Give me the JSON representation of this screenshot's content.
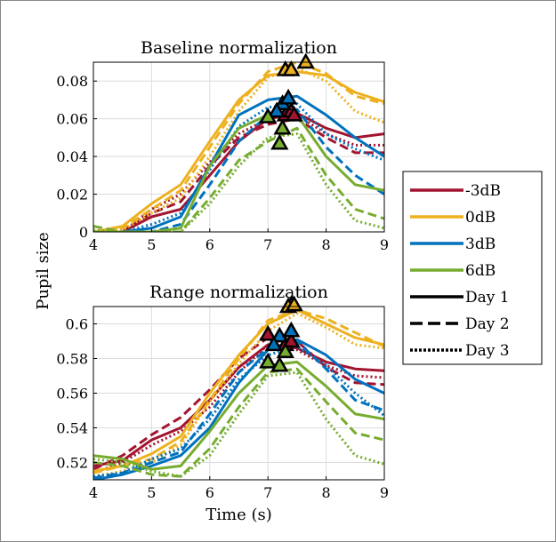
{
  "colors": {
    "-3dB": "#a2142f",
    "0dB": "#edb120",
    "3dB": "#0072bd",
    "6dB": "#77ac30",
    "black": "#000000"
  },
  "legend": {
    "position": "right",
    "entries": [
      {
        "label": "-3dB",
        "color": "#a2142f",
        "style": "solid"
      },
      {
        "label": "0dB",
        "color": "#edb120",
        "style": "solid"
      },
      {
        "label": "3dB",
        "color": "#0072bd",
        "style": "solid"
      },
      {
        "label": "6dB",
        "color": "#77ac30",
        "style": "solid"
      },
      {
        "label": "Day 1",
        "color": "#000000",
        "style": "solid"
      },
      {
        "label": "Day 2",
        "color": "#000000",
        "style": "dashed"
      },
      {
        "label": "Day 3",
        "color": "#000000",
        "style": "dotted"
      }
    ]
  },
  "shared_ylabel": "Pupil size",
  "chart_data": [
    {
      "type": "line",
      "title": "Baseline normalization",
      "xlabel": "",
      "ylabel": "Pupil size",
      "xlim": [
        4,
        9
      ],
      "ylim": [
        0,
        0.09
      ],
      "xticks": [
        4,
        5,
        6,
        7,
        8,
        9
      ],
      "yticks": [
        0,
        0.02,
        0.04,
        0.06,
        0.08
      ],
      "ytick_labels": [
        "0",
        "0.02",
        "0.04",
        "0.06",
        "0.08"
      ],
      "grid": true,
      "x": [
        4.0,
        4.5,
        5.0,
        5.5,
        6.0,
        6.5,
        7.0,
        7.5,
        8.0,
        8.5,
        9.0
      ],
      "series": [
        {
          "group": "-3dB",
          "day": "Day 1",
          "values": [
            0,
            0,
            0.008,
            0.012,
            0.03,
            0.048,
            0.06,
            0.063,
            0.055,
            0.05,
            0.052
          ]
        },
        {
          "group": "-3dB",
          "day": "Day 2",
          "values": [
            0,
            0,
            0.01,
            0.016,
            0.035,
            0.05,
            0.057,
            0.06,
            0.05,
            0.042,
            0.042
          ]
        },
        {
          "group": "-3dB",
          "day": "Day 3",
          "values": [
            0,
            0,
            0.012,
            0.02,
            0.037,
            0.052,
            0.06,
            0.062,
            0.052,
            0.046,
            0.046
          ]
        },
        {
          "group": "0dB",
          "day": "Day 1",
          "values": [
            0,
            0.003,
            0.015,
            0.025,
            0.048,
            0.07,
            0.083,
            0.085,
            0.083,
            0.074,
            0.069
          ]
        },
        {
          "group": "0dB",
          "day": "Day 2",
          "values": [
            0,
            0.002,
            0.012,
            0.022,
            0.045,
            0.068,
            0.085,
            0.09,
            0.084,
            0.072,
            0.068
          ]
        },
        {
          "group": "0dB",
          "day": "Day 3",
          "values": [
            0,
            0.001,
            0.01,
            0.018,
            0.04,
            0.064,
            0.082,
            0.087,
            0.08,
            0.064,
            0.058
          ]
        },
        {
          "group": "3dB",
          "day": "Day 1",
          "values": [
            0,
            0,
            0.002,
            0.008,
            0.035,
            0.062,
            0.07,
            0.072,
            0.062,
            0.05,
            0.04
          ]
        },
        {
          "group": "3dB",
          "day": "Day 2",
          "values": [
            0,
            0,
            0,
            0.004,
            0.025,
            0.048,
            0.062,
            0.065,
            0.045,
            0.03,
            0.02
          ]
        },
        {
          "group": "3dB",
          "day": "Day 3",
          "values": [
            0,
            0,
            0.004,
            0.01,
            0.033,
            0.056,
            0.066,
            0.068,
            0.052,
            0.044,
            0.038
          ]
        },
        {
          "group": "6dB",
          "day": "Day 1",
          "values": [
            0,
            0,
            0,
            0.002,
            0.035,
            0.055,
            0.062,
            0.062,
            0.04,
            0.025,
            0.022
          ]
        },
        {
          "group": "6dB",
          "day": "Day 2",
          "values": [
            0.003,
            0,
            0,
            0,
            0.018,
            0.038,
            0.048,
            0.055,
            0.03,
            0.012,
            0.007
          ]
        },
        {
          "group": "6dB",
          "day": "Day 3",
          "values": [
            0.001,
            0,
            0,
            0,
            0.015,
            0.035,
            0.05,
            0.052,
            0.025,
            0.006,
            0.002
          ]
        }
      ],
      "peaks": [
        {
          "group": "-3dB",
          "x": 7.3,
          "y": 0.062
        },
        {
          "group": "-3dB",
          "x": 7.4,
          "y": 0.064
        },
        {
          "group": "-3dB",
          "x": 7.45,
          "y": 0.062
        },
        {
          "group": "0dB",
          "x": 7.3,
          "y": 0.086
        },
        {
          "group": "0dB",
          "x": 7.4,
          "y": 0.086
        },
        {
          "group": "0dB",
          "x": 7.65,
          "y": 0.09
        },
        {
          "group": "3dB",
          "x": 7.25,
          "y": 0.068
        },
        {
          "group": "3dB",
          "x": 7.35,
          "y": 0.071
        },
        {
          "group": "3dB",
          "x": 7.15,
          "y": 0.064
        },
        {
          "group": "6dB",
          "x": 7.0,
          "y": 0.061
        },
        {
          "group": "6dB",
          "x": 7.2,
          "y": 0.047
        },
        {
          "group": "6dB",
          "x": 7.25,
          "y": 0.055
        }
      ]
    },
    {
      "type": "line",
      "title": "Range normalization",
      "xlabel": "Time (s)",
      "ylabel": "Pupil size",
      "xlim": [
        4,
        9
      ],
      "ylim": [
        0.51,
        0.61
      ],
      "xticks": [
        4,
        5,
        6,
        7,
        8,
        9
      ],
      "yticks": [
        0.52,
        0.54,
        0.56,
        0.58,
        0.6
      ],
      "ytick_labels": [
        "0.52",
        "0.54",
        "0.56",
        "0.58",
        "0.6"
      ],
      "grid": true,
      "x": [
        4.0,
        4.5,
        5.0,
        5.5,
        6.0,
        6.5,
        7.0,
        7.5,
        8.0,
        8.5,
        9.0
      ],
      "series": [
        {
          "group": "-3dB",
          "day": "Day 1",
          "values": [
            0.518,
            0.521,
            0.533,
            0.54,
            0.556,
            0.575,
            0.588,
            0.586,
            0.578,
            0.574,
            0.573
          ]
        },
        {
          "group": "-3dB",
          "day": "Day 2",
          "values": [
            0.516,
            0.524,
            0.536,
            0.546,
            0.562,
            0.58,
            0.592,
            0.59,
            0.575,
            0.566,
            0.565
          ]
        },
        {
          "group": "-3dB",
          "day": "Day 3",
          "values": [
            0.514,
            0.52,
            0.53,
            0.538,
            0.552,
            0.572,
            0.588,
            0.585,
            0.576,
            0.57,
            0.569
          ]
        },
        {
          "group": "0dB",
          "day": "Day 1",
          "values": [
            0.515,
            0.518,
            0.525,
            0.535,
            0.56,
            0.582,
            0.6,
            0.608,
            0.6,
            0.592,
            0.588
          ]
        },
        {
          "group": "0dB",
          "day": "Day 2",
          "values": [
            0.514,
            0.518,
            0.522,
            0.532,
            0.556,
            0.58,
            0.602,
            0.608,
            0.603,
            0.595,
            0.587
          ]
        },
        {
          "group": "0dB",
          "day": "Day 3",
          "values": [
            0.512,
            0.515,
            0.52,
            0.53,
            0.555,
            0.577,
            0.596,
            0.606,
            0.598,
            0.588,
            0.586
          ]
        },
        {
          "group": "3dB",
          "day": "Day 1",
          "values": [
            0.51,
            0.513,
            0.518,
            0.524,
            0.54,
            0.566,
            0.585,
            0.591,
            0.582,
            0.568,
            0.56
          ]
        },
        {
          "group": "3dB",
          "day": "Day 2",
          "values": [
            0.511,
            0.514,
            0.52,
            0.526,
            0.548,
            0.572,
            0.586,
            0.59,
            0.574,
            0.556,
            0.55
          ]
        },
        {
          "group": "3dB",
          "day": "Day 3",
          "values": [
            0.512,
            0.514,
            0.522,
            0.528,
            0.545,
            0.568,
            0.582,
            0.587,
            0.576,
            0.56,
            0.547
          ]
        },
        {
          "group": "6dB",
          "day": "Day 1",
          "values": [
            0.524,
            0.522,
            0.516,
            0.518,
            0.538,
            0.56,
            0.576,
            0.578,
            0.564,
            0.548,
            0.545
          ]
        },
        {
          "group": "6dB",
          "day": "Day 2",
          "values": [
            0.52,
            0.518,
            0.513,
            0.512,
            0.528,
            0.552,
            0.572,
            0.574,
            0.555,
            0.537,
            0.533
          ]
        },
        {
          "group": "6dB",
          "day": "Day 3",
          "values": [
            0.522,
            0.52,
            0.515,
            0.512,
            0.524,
            0.548,
            0.57,
            0.572,
            0.545,
            0.524,
            0.519
          ]
        }
      ],
      "peaks": [
        {
          "group": "-3dB",
          "x": 7.0,
          "y": 0.594
        },
        {
          "group": "-3dB",
          "x": 7.3,
          "y": 0.588
        },
        {
          "group": "-3dB",
          "x": 7.4,
          "y": 0.59
        },
        {
          "group": "0dB",
          "x": 7.4,
          "y": 0.611
        },
        {
          "group": "0dB",
          "x": 7.35,
          "y": 0.61
        },
        {
          "group": "0dB",
          "x": 7.45,
          "y": 0.611
        },
        {
          "group": "3dB",
          "x": 7.2,
          "y": 0.593
        },
        {
          "group": "3dB",
          "x": 7.4,
          "y": 0.596
        },
        {
          "group": "3dB",
          "x": 7.1,
          "y": 0.588
        },
        {
          "group": "6dB",
          "x": 7.0,
          "y": 0.578
        },
        {
          "group": "6dB",
          "x": 7.2,
          "y": 0.576
        },
        {
          "group": "6dB",
          "x": 7.3,
          "y": 0.584
        }
      ]
    }
  ]
}
